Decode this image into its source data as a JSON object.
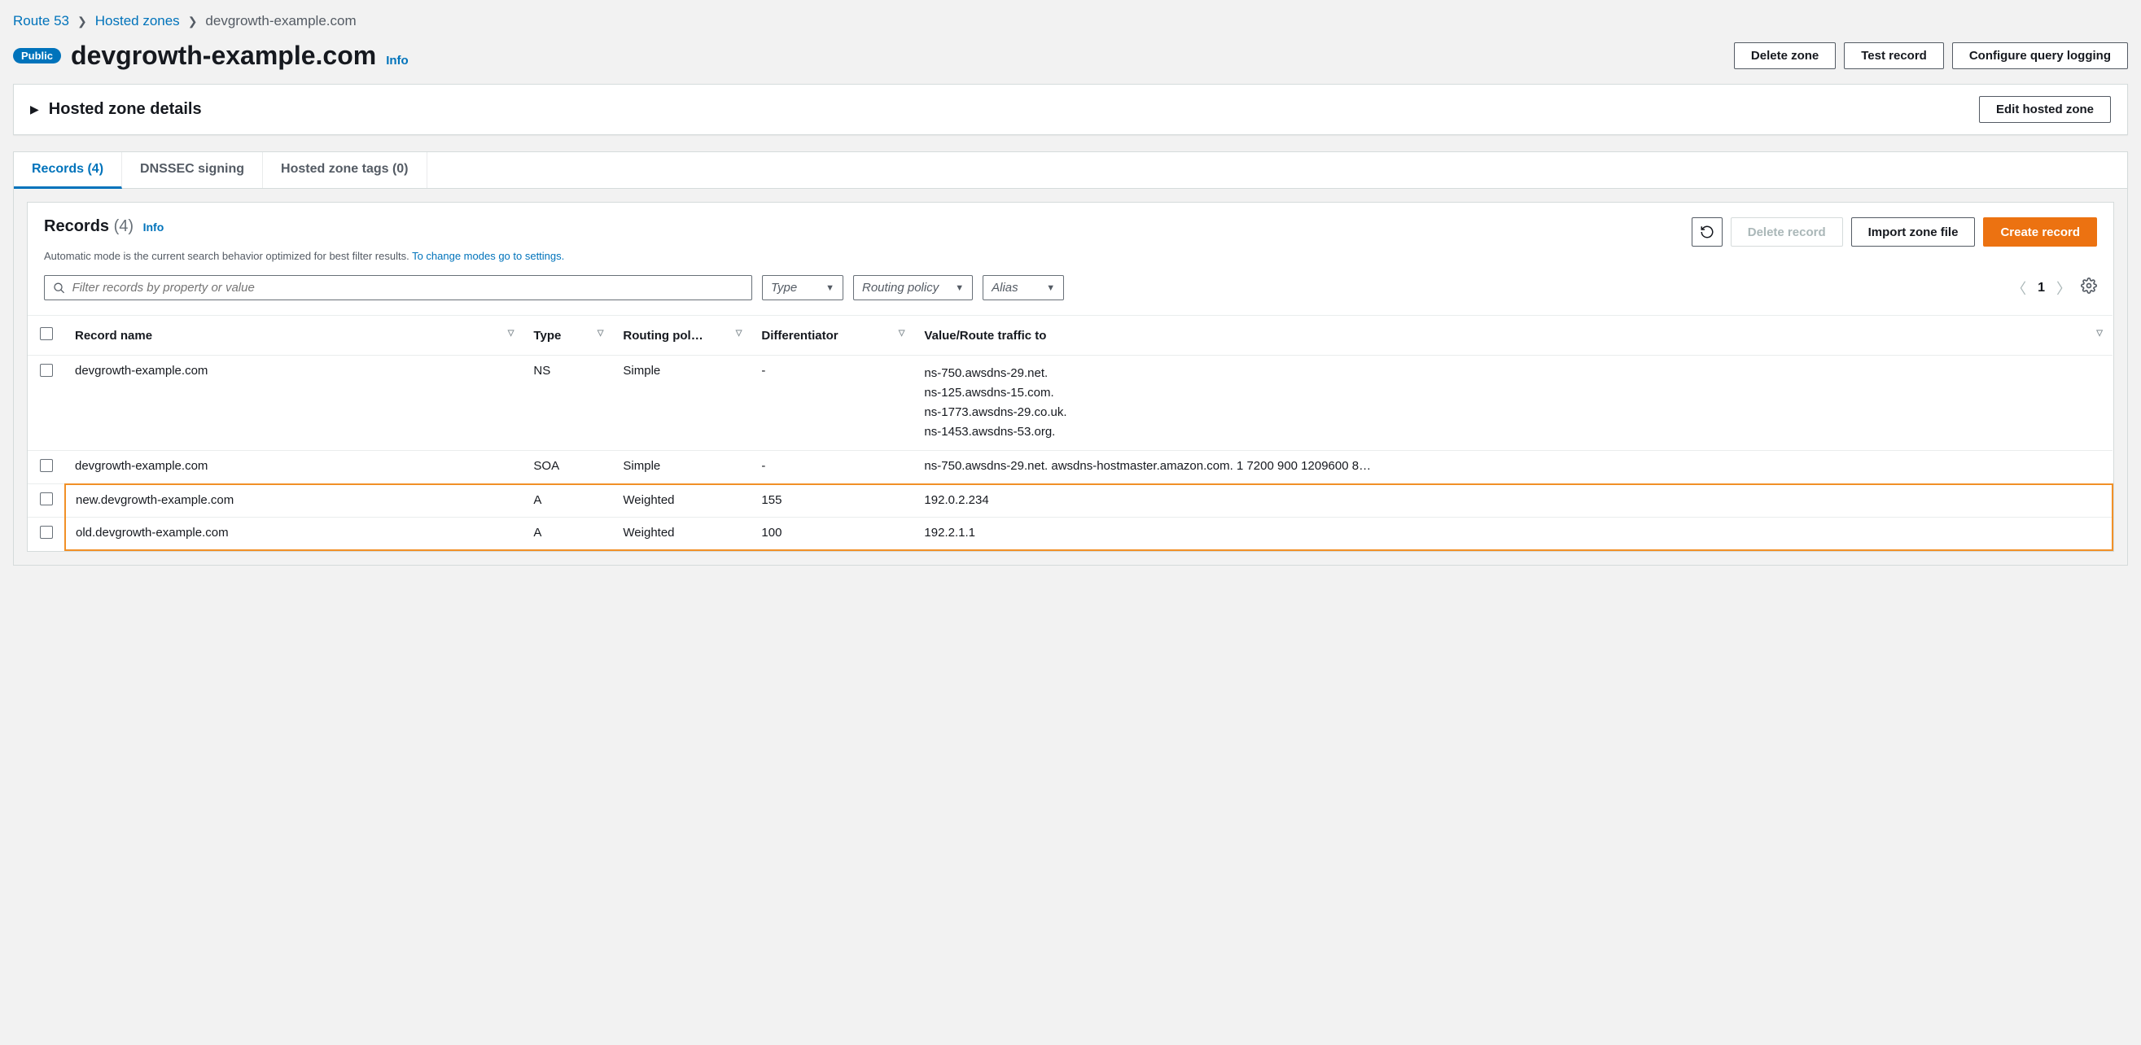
{
  "breadcrumbs": {
    "items": [
      {
        "label": "Route 53",
        "link": true
      },
      {
        "label": "Hosted zones",
        "link": true
      },
      {
        "label": "devgrowth-example.com",
        "link": false
      }
    ]
  },
  "header": {
    "badge": "Public",
    "title": "devgrowth-example.com",
    "info": "Info",
    "buttons": {
      "delete_zone": "Delete zone",
      "test_record": "Test record",
      "configure_logging": "Configure query logging"
    }
  },
  "details": {
    "title": "Hosted zone details",
    "edit_button": "Edit hosted zone"
  },
  "tabs": {
    "records": "Records (4)",
    "dnssec": "DNSSEC signing",
    "tags": "Hosted zone tags (0)"
  },
  "records_section": {
    "title": "Records",
    "count": "(4)",
    "info": "Info",
    "subtitle_pre": "Automatic mode is the current search behavior optimized for best filter results. ",
    "subtitle_link": "To change modes go to settings.",
    "buttons": {
      "delete_record": "Delete record",
      "import_zone": "Import zone file",
      "create_record": "Create record"
    }
  },
  "filters": {
    "search_placeholder": "Filter records by property or value",
    "type_label": "Type",
    "routing_label": "Routing policy",
    "alias_label": "Alias",
    "page": "1"
  },
  "table": {
    "columns": {
      "name": "Record name",
      "type": "Type",
      "routing": "Routing pol…",
      "diff": "Differentiator",
      "value": "Value/Route traffic to"
    },
    "rows": [
      {
        "name": "devgrowth-example.com",
        "type": "NS",
        "routing": "Simple",
        "diff": "-",
        "value": "ns-750.awsdns-29.net.\nns-125.awsdns-15.com.\nns-1773.awsdns-29.co.uk.\nns-1453.awsdns-53.org.",
        "highlight": false
      },
      {
        "name": "devgrowth-example.com",
        "type": "SOA",
        "routing": "Simple",
        "diff": "-",
        "value": "ns-750.awsdns-29.net. awsdns-hostmaster.amazon.com. 1 7200 900 1209600 8…",
        "highlight": false
      },
      {
        "name": "new.devgrowth-example.com",
        "type": "A",
        "routing": "Weighted",
        "diff": "155",
        "value": "192.0.2.234",
        "highlight": true
      },
      {
        "name": "old.devgrowth-example.com",
        "type": "A",
        "routing": "Weighted",
        "diff": "100",
        "value": "192.2.1.1",
        "highlight": true
      }
    ]
  },
  "colors": {
    "link": "#0073bb",
    "primary": "#ec7211",
    "highlight_border": "#f19027",
    "background": "#f2f2f2",
    "border": "#d5dbdb",
    "text": "#16191f",
    "muted": "#545b64"
  }
}
